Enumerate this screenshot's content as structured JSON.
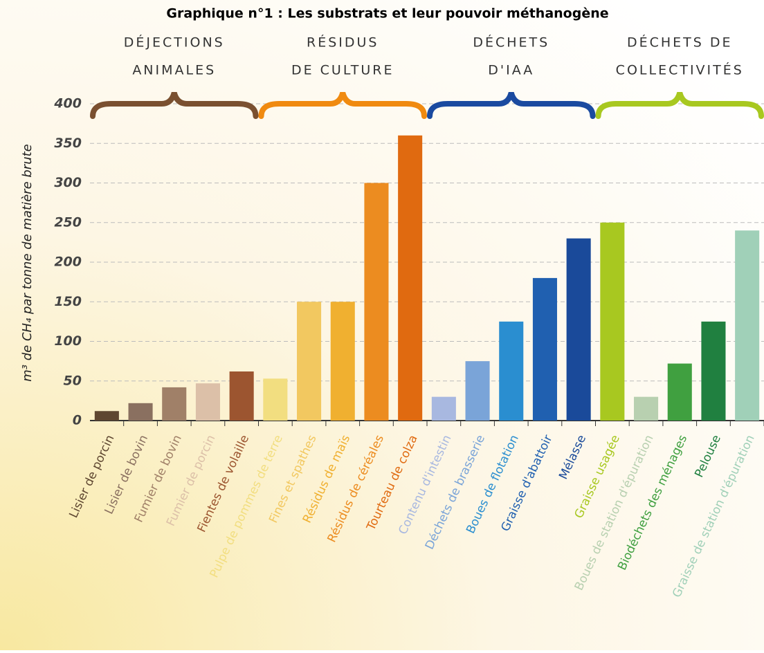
{
  "chart_data": {
    "type": "bar",
    "title": "Graphique n°1 : Les substrats et leur pouvoir méthanogène",
    "y_label": "m³ de CH₄ par tonne de matière brute",
    "ylim": [
      0,
      400
    ],
    "yticks": [
      0,
      50,
      100,
      150,
      200,
      250,
      300,
      350,
      400
    ],
    "grid": true,
    "groups": [
      {
        "label": [
          "DÉJECTIONS",
          "ANIMALES"
        ],
        "color": "#7a5030",
        "categories": [
          "Lisier de porcin",
          "Lisier de bovin",
          "Fumier de bovin",
          "Fumier de porcin",
          "Fientes de volaille"
        ],
        "values": [
          12,
          22,
          42,
          47,
          62
        ],
        "colors": [
          "#5e4630",
          "#8a7060",
          "#a08068",
          "#dcc0a8",
          "#9c5530"
        ]
      },
      {
        "label": [
          "RÉSIDUS",
          "DE CULTURE"
        ],
        "color": "#f08a10",
        "categories": [
          "Pulpe de pommes de terre",
          "Fines et spathes",
          "Résidus de maïs",
          "Résidus de céréales",
          "Tourteau de colza"
        ],
        "values": [
          53,
          150,
          150,
          300,
          360
        ],
        "colors": [
          "#f2de80",
          "#f2c860",
          "#f0b030",
          "#ec8c20",
          "#e06a10"
        ]
      },
      {
        "label": [
          "DÉCHETS",
          "D'IAA"
        ],
        "color": "#1a4aa0",
        "categories": [
          "Contenu d'intestin",
          "Déchets de brasserie",
          "Boues de flotation",
          "Graisse d'abattoir",
          "Mélasse"
        ],
        "values": [
          30,
          75,
          125,
          180,
          230
        ],
        "colors": [
          "#a8b8e0",
          "#7aa4d8",
          "#2a8ed0",
          "#2060b0",
          "#1a4a9a"
        ]
      },
      {
        "label": [
          "DÉCHETS DE",
          "COLLECTIVITÉS"
        ],
        "color": "#a8c820",
        "categories": [
          "Graisse usagée",
          "Boues de station d'épuration",
          "Biodéchets des ménages",
          "Pelouse",
          "Graisse de station d'épuration"
        ],
        "values": [
          250,
          30,
          72,
          125,
          240
        ],
        "colors": [
          "#a8c820",
          "#b8d0b0",
          "#40a040",
          "#208040",
          "#a0d0b8"
        ]
      }
    ]
  }
}
